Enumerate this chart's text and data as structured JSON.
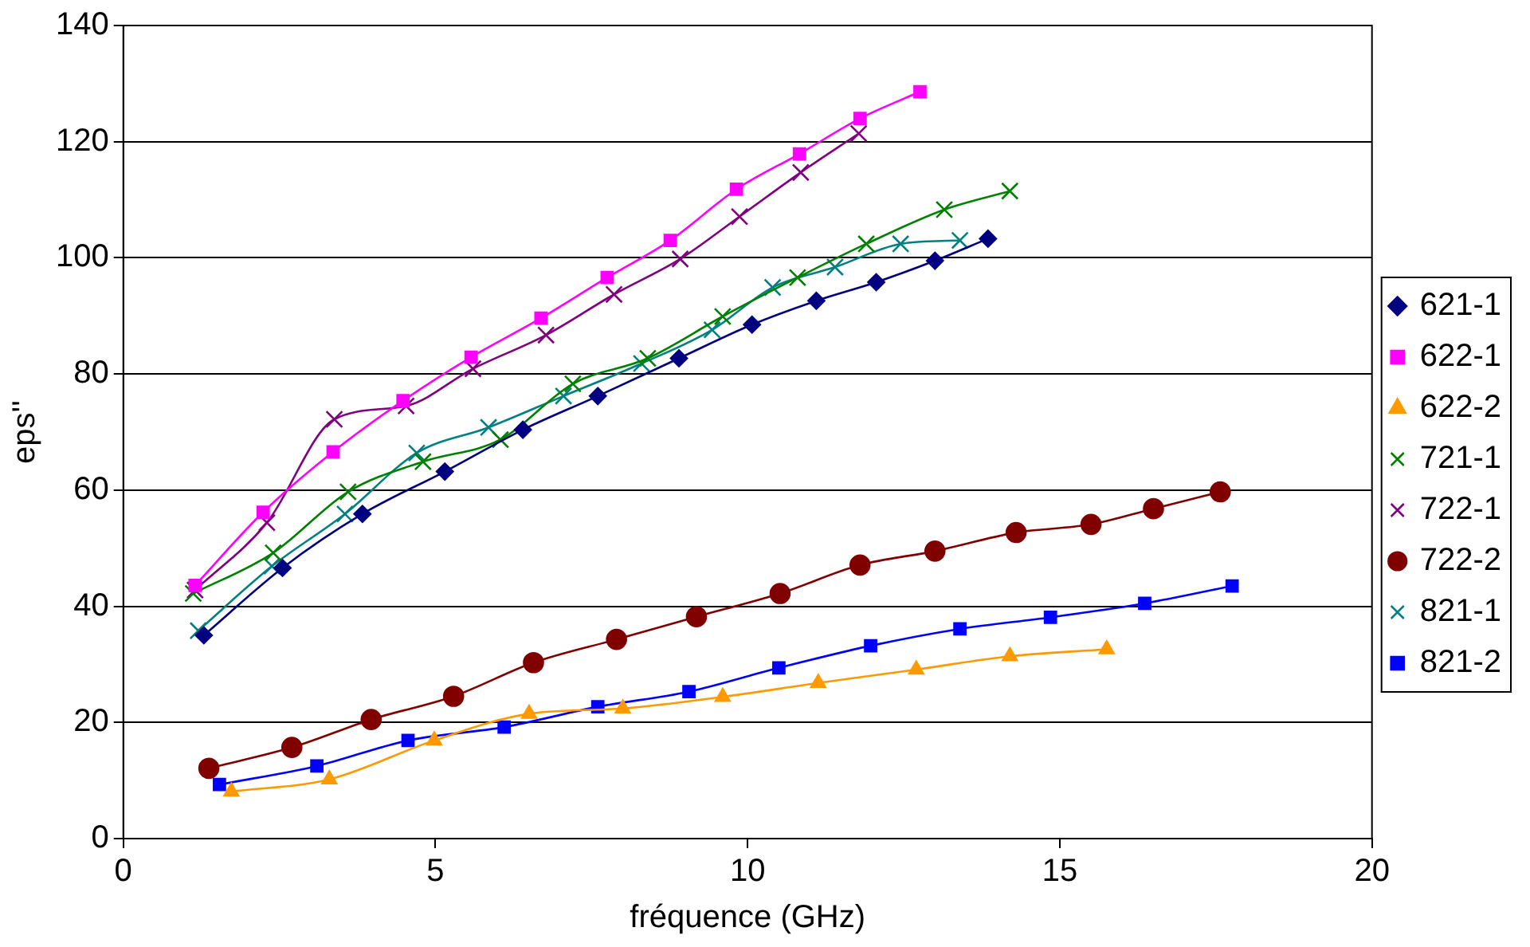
{
  "chart_data": {
    "type": "line",
    "xlabel": "fréquence (GHz)",
    "ylabel": "eps''",
    "xlim": [
      0,
      20
    ],
    "xticks": [
      0,
      5,
      10,
      15,
      20
    ],
    "ylim": [
      0,
      140
    ],
    "yticks": [
      0,
      20,
      40,
      60,
      80,
      100,
      120,
      140
    ],
    "grid": "y",
    "legend": "right",
    "line_style": "solid",
    "series": [
      {
        "name": "621-1",
        "color": "#000080",
        "marker": "diamond",
        "x": [
          1.29,
          2.55,
          3.83,
          5.15,
          6.4,
          7.6,
          8.9,
          10.07,
          11.1,
          12.06,
          13.0,
          13.85
        ],
        "values": [
          35,
          46.6,
          55.9,
          63.2,
          70.4,
          76.2,
          82.7,
          88.5,
          92.6,
          95.8,
          99.5,
          103.3
        ]
      },
      {
        "name": "622-1",
        "color": "#ff00ff",
        "marker": "square",
        "x": [
          1.15,
          2.24,
          3.36,
          4.48,
          5.57,
          6.69,
          7.75,
          8.76,
          9.82,
          10.83,
          11.8,
          12.76
        ],
        "values": [
          43.6,
          56.2,
          66.6,
          75.4,
          82.9,
          89.6,
          96.6,
          103,
          111.8,
          117.9,
          124,
          128.6
        ]
      },
      {
        "name": "622-2",
        "color": "#ff9900",
        "marker": "triangle",
        "x": [
          1.73,
          3.3,
          4.98,
          6.5,
          8.0,
          9.6,
          11.13,
          12.7,
          14.2,
          15.75
        ],
        "values": [
          8.1,
          10.2,
          16.9,
          21.5,
          22.4,
          24.4,
          26.8,
          29.1,
          31.4,
          32.6
        ]
      },
      {
        "name": "721-1",
        "color": "#008000",
        "marker": "cross",
        "x": [
          1.12,
          2.4,
          3.6,
          4.8,
          6.04,
          7.2,
          8.4,
          9.6,
          10.8,
          11.9,
          13.15,
          14.2
        ],
        "values": [
          42.2,
          49.2,
          59.7,
          64.9,
          68.7,
          78.3,
          82.7,
          89.9,
          96.6,
          102.4,
          108.3,
          111.5
        ]
      },
      {
        "name": "722-1",
        "color": "#800080",
        "marker": "cross",
        "x": [
          1.15,
          2.3,
          3.38,
          4.53,
          5.6,
          6.77,
          7.86,
          8.92,
          9.87,
          10.85,
          11.78
        ],
        "values": [
          42.8,
          54.4,
          72.2,
          74.5,
          80.9,
          86.7,
          93.7,
          99.8,
          107.1,
          114.7,
          121.4
        ]
      },
      {
        "name": "722-2",
        "color": "#800000",
        "marker": "circle",
        "x": [
          1.37,
          2.7,
          3.97,
          5.29,
          6.57,
          7.9,
          9.18,
          10.52,
          11.8,
          13.0,
          14.3,
          15.5,
          16.5,
          17.57
        ],
        "values": [
          12.1,
          15.7,
          20.5,
          24.5,
          30.3,
          34.3,
          38.2,
          42.2,
          47.1,
          49.5,
          52.7,
          54.1,
          56.8,
          59.7
        ]
      },
      {
        "name": "821-1",
        "color": "#008080",
        "marker": "cross",
        "x": [
          1.2,
          2.38,
          3.55,
          4.7,
          5.85,
          7.05,
          8.3,
          9.43,
          10.4,
          11.4,
          12.45,
          13.4
        ],
        "values": [
          35.8,
          46.9,
          55.9,
          66.4,
          70.8,
          76.2,
          81.8,
          87.6,
          94.9,
          98.4,
          102.4,
          103
        ]
      },
      {
        "name": "821-2",
        "color": "#0000ff",
        "marker": "square",
        "x": [
          1.54,
          3.1,
          4.56,
          6.1,
          7.6,
          9.06,
          10.5,
          11.97,
          13.4,
          14.85,
          16.36,
          17.76
        ],
        "values": [
          9.3,
          12.5,
          16.9,
          19.2,
          22.7,
          25.3,
          29.4,
          33.2,
          36.1,
          38.1,
          40.5,
          43.5
        ]
      }
    ]
  }
}
